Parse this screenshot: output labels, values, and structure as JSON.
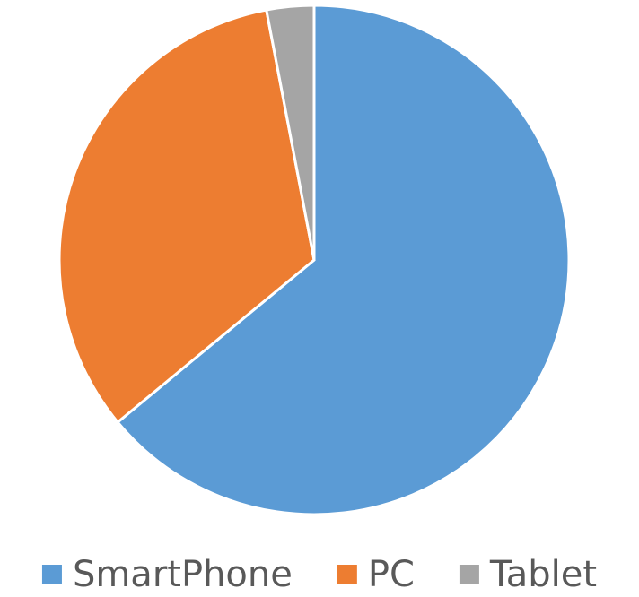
{
  "chart_data": {
    "type": "pie",
    "categories": [
      "SmartPhone",
      "PC",
      "Tablet"
    ],
    "values": [
      64,
      33,
      3
    ],
    "colors": [
      "#5b9bd5",
      "#ed7d31",
      "#a5a5a5"
    ],
    "legend": "bottom"
  }
}
